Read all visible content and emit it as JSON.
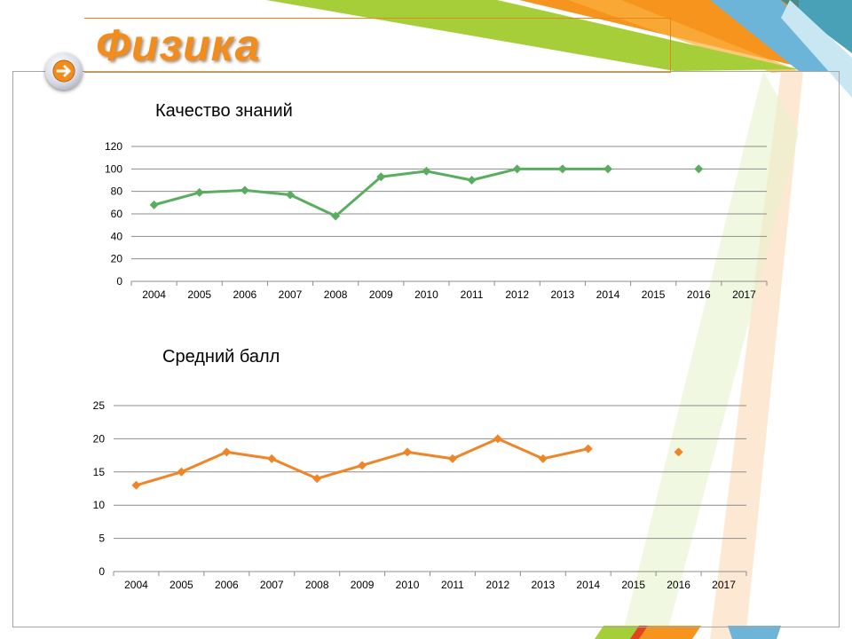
{
  "slide": {
    "title": "Физика",
    "colors": {
      "title": "#f28c1c",
      "accent_green": "#8cc63f",
      "accent_orange": "#f7941d",
      "accent_blue": "#6cb4d8"
    },
    "nav_icon": "arrow-right-icon"
  },
  "chart_data": [
    {
      "type": "line",
      "title": "Качество знаний",
      "categories": [
        "2004",
        "2005",
        "2006",
        "2007",
        "2008",
        "2009",
        "2010",
        "2011",
        "2012",
        "2013",
        "2014",
        "2015",
        "2016",
        "2017"
      ],
      "series": [
        {
          "values": [
            68,
            79,
            81,
            77,
            58,
            93,
            98,
            90,
            100,
            100,
            100,
            null,
            100,
            null
          ],
          "color": "#5aad5f"
        }
      ],
      "ylim": [
        0,
        120
      ],
      "yticks": [
        0,
        20,
        40,
        60,
        80,
        100,
        120
      ],
      "grid": true,
      "legend": "none"
    },
    {
      "type": "line",
      "title": "Средний балл",
      "categories": [
        "2004",
        "2005",
        "2006",
        "2007",
        "2008",
        "2009",
        "2010",
        "2011",
        "2012",
        "2013",
        "2014",
        "2015",
        "2016",
        "2017"
      ],
      "series": [
        {
          "values": [
            13,
            15,
            18,
            17,
            14,
            16,
            18,
            17,
            20,
            17,
            18.5,
            null,
            18,
            null
          ],
          "color": "#ee8527"
        }
      ],
      "ylim": [
        0,
        25
      ],
      "yticks": [
        0,
        5,
        10,
        15,
        20,
        25
      ],
      "grid": true,
      "legend": "none"
    }
  ]
}
